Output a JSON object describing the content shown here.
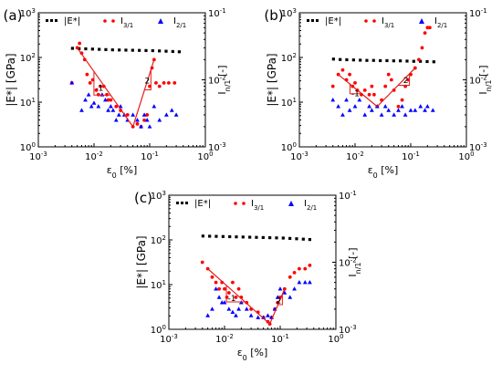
{
  "chart_data": [
    {
      "panel_label": "(a)",
      "type": "scatter",
      "xlabel": "ε0 [%]",
      "xscale": "log",
      "xlim": [
        0.001,
        1
      ],
      "xticks": [
        "10-3",
        "10-2",
        "10-1",
        "100"
      ],
      "ylabel_left": "|E*| [GPa]",
      "yscale_left": "log",
      "ylim_left": [
        1,
        1000
      ],
      "yticks_left": [
        "100",
        "101",
        "102",
        "103"
      ],
      "ylabel_right": "In/1 [-]",
      "yscale_right": "log",
      "ylim_right": [
        0.001,
        0.1
      ],
      "yticks_right": [
        "10-3",
        "10-2",
        "10-1"
      ],
      "legend": [
        "|E*|",
        "I3/1",
        "I2/1"
      ],
      "legend_position": "top",
      "slope_annotations": [
        "-1",
        "2"
      ],
      "series": [
        {
          "name": "|E*|",
          "axis": "left",
          "marker": "square",
          "color": "#000000",
          "x": [
            0.0041,
            0.0054,
            0.0071,
            0.0094,
            0.0124,
            0.0163,
            0.0215,
            0.0284,
            0.0374,
            0.0494,
            0.0651,
            0.0859,
            0.1133,
            0.1494,
            0.1971,
            0.26,
            0.34
          ],
          "y": [
            160,
            158,
            156,
            154,
            152,
            150,
            148,
            147,
            146,
            145,
            144,
            143,
            142,
            140,
            138,
            136,
            134
          ]
        },
        {
          "name": "I3/1",
          "axis": "right",
          "marker": "circle",
          "color": "#ff0000",
          "x": [
            0.004,
            0.005,
            0.0055,
            0.006,
            0.0068,
            0.0075,
            0.0085,
            0.0095,
            0.011,
            0.012,
            0.013,
            0.015,
            0.017,
            0.018,
            0.02,
            0.025,
            0.03,
            0.04,
            0.05,
            0.06,
            0.07,
            0.08,
            0.09,
            0.1,
            0.11,
            0.12,
            0.13,
            0.15,
            0.18,
            0.22,
            0.28
          ],
          "y": [
            0.009,
            0.03,
            0.035,
            0.025,
            0.02,
            0.012,
            0.009,
            0.01,
            0.007,
            0.006,
            0.008,
            0.008,
            0.006,
            0.005,
            0.005,
            0.004,
            0.0035,
            0.003,
            0.002,
            0.0022,
            0.002,
            0.0025,
            0.003,
            0.008,
            0.015,
            0.02,
            0.009,
            0.008,
            0.009,
            0.009,
            0.009
          ]
        },
        {
          "name": "I2/1",
          "axis": "right",
          "marker": "triangle",
          "color": "#0000ff",
          "x": [
            0.004,
            0.006,
            0.007,
            0.008,
            0.009,
            0.01,
            0.012,
            0.014,
            0.016,
            0.018,
            0.02,
            0.022,
            0.025,
            0.028,
            0.03,
            0.035,
            0.04,
            0.05,
            0.06,
            0.07,
            0.08,
            0.09,
            0.1,
            0.12,
            0.15,
            0.2,
            0.25,
            0.3
          ],
          "y": [
            0.009,
            0.0035,
            0.005,
            0.006,
            0.004,
            0.0045,
            0.004,
            0.006,
            0.005,
            0.0035,
            0.004,
            0.0035,
            0.0025,
            0.003,
            0.004,
            0.003,
            0.0025,
            0.003,
            0.0025,
            0.002,
            0.003,
            0.0025,
            0.002,
            0.004,
            0.0025,
            0.003,
            0.0035,
            0.003
          ]
        }
      ]
    },
    {
      "panel_label": "(b)",
      "type": "scatter",
      "xlabel": "ε0 [%]",
      "xscale": "log",
      "xlim": [
        0.001,
        1
      ],
      "xticks": [
        "10-3",
        "10-2",
        "10-1",
        "100"
      ],
      "ylabel_left": "|E*| [GPa]",
      "yscale_left": "log",
      "ylim_left": [
        1,
        1000
      ],
      "yticks_left": [
        "100",
        "101",
        "102",
        "103"
      ],
      "ylabel_right": "In/1 [-]",
      "yscale_right": "log",
      "ylim_right": [
        0.001,
        0.1
      ],
      "yticks_right": [
        "10-3",
        "10-2",
        "10-1"
      ],
      "legend": [
        "|E*|",
        "I3/1",
        "I2/1"
      ],
      "legend_position": "top",
      "slope_annotations": [
        "-1",
        "2"
      ],
      "series": [
        {
          "name": "|E*|",
          "axis": "left",
          "marker": "square",
          "color": "#000000",
          "x": [
            0.0041,
            0.0054,
            0.0071,
            0.0094,
            0.0124,
            0.0163,
            0.0215,
            0.0284,
            0.0374,
            0.0494,
            0.0651,
            0.0859,
            0.1133,
            0.1494,
            0.1971,
            0.26
          ],
          "y": [
            92,
            90,
            89,
            88,
            87,
            86,
            86,
            85,
            85,
            84,
            84,
            83,
            82,
            82,
            81,
            80
          ]
        },
        {
          "name": "I3/1",
          "axis": "right",
          "marker": "circle",
          "color": "#ff0000",
          "x": [
            0.004,
            0.005,
            0.006,
            0.007,
            0.008,
            0.009,
            0.01,
            0.011,
            0.013,
            0.015,
            0.018,
            0.02,
            0.022,
            0.025,
            0.03,
            0.035,
            0.04,
            0.045,
            0.05,
            0.06,
            0.07,
            0.08,
            0.09,
            0.1,
            0.12,
            0.14,
            0.16,
            0.18,
            0.2,
            0.22
          ],
          "y": [
            0.008,
            0.012,
            0.014,
            0.01,
            0.012,
            0.008,
            0.009,
            0.007,
            0.006,
            0.007,
            0.006,
            0.008,
            0.006,
            0.004,
            0.005,
            0.008,
            0.012,
            0.01,
            0.007,
            0.004,
            0.005,
            0.008,
            0.01,
            0.012,
            0.015,
            0.02,
            0.03,
            0.05,
            0.06,
            0.06
          ]
        },
        {
          "name": "I2/1",
          "axis": "right",
          "marker": "triangle",
          "color": "#0000ff",
          "x": [
            0.004,
            0.005,
            0.006,
            0.007,
            0.008,
            0.01,
            0.012,
            0.015,
            0.018,
            0.02,
            0.025,
            0.03,
            0.035,
            0.04,
            0.05,
            0.06,
            0.07,
            0.08,
            0.1,
            0.12,
            0.15,
            0.18,
            0.2,
            0.25
          ],
          "y": [
            0.005,
            0.004,
            0.003,
            0.005,
            0.0035,
            0.004,
            0.005,
            0.003,
            0.004,
            0.0035,
            0.004,
            0.003,
            0.004,
            0.0035,
            0.003,
            0.0035,
            0.004,
            0.003,
            0.0035,
            0.0035,
            0.004,
            0.0035,
            0.004,
            0.0035
          ]
        }
      ]
    },
    {
      "panel_label": "(c)",
      "type": "scatter",
      "xlabel": "ε0 [%]",
      "xscale": "log",
      "xlim": [
        0.001,
        1
      ],
      "xticks": [
        "10-3",
        "10-2",
        "10-1",
        "100"
      ],
      "ylabel_left": "|E*| [GPa]",
      "yscale_left": "log",
      "ylim_left": [
        1,
        1000
      ],
      "yticks_left": [
        "100",
        "101",
        "102",
        "103"
      ],
      "ylabel_right": "In/1 [-]",
      "yscale_right": "log",
      "ylim_right": [
        0.001,
        0.1
      ],
      "yticks_right": [
        "10-3",
        "10-2",
        "10-1"
      ],
      "legend": [
        "|E*|",
        "I3/1",
        "I2/1"
      ],
      "legend_position": "top",
      "slope_annotations": [
        "-1",
        "2"
      ],
      "series": [
        {
          "name": "|E*|",
          "axis": "left",
          "marker": "square",
          "color": "#000000",
          "x": [
            0.0041,
            0.0054,
            0.0071,
            0.0094,
            0.0124,
            0.0163,
            0.0215,
            0.0284,
            0.0374,
            0.0494,
            0.0651,
            0.0859,
            0.1133,
            0.1494,
            0.1971,
            0.26,
            0.34
          ],
          "y": [
            122,
            121,
            120,
            119,
            118,
            117,
            116,
            115,
            114,
            113,
            112,
            111,
            110,
            108,
            106,
            104,
            102
          ]
        },
        {
          "name": "I3/1",
          "axis": "right",
          "marker": "circle",
          "color": "#ff0000",
          "x": [
            0.004,
            0.005,
            0.006,
            0.007,
            0.008,
            0.009,
            0.01,
            0.011,
            0.012,
            0.014,
            0.016,
            0.018,
            0.02,
            0.025,
            0.03,
            0.04,
            0.05,
            0.06,
            0.065,
            0.07,
            0.08,
            0.09,
            0.1,
            0.12,
            0.15,
            0.18,
            0.22,
            0.28,
            0.34
          ],
          "y": [
            0.01,
            0.008,
            0.006,
            0.005,
            0.004,
            0.005,
            0.004,
            0.003,
            0.0035,
            0.005,
            0.003,
            0.004,
            0.003,
            0.0025,
            0.002,
            0.0018,
            0.0015,
            0.0013,
            0.0012,
            0.0015,
            0.002,
            0.0025,
            0.003,
            0.004,
            0.006,
            0.007,
            0.008,
            0.008,
            0.009
          ]
        },
        {
          "name": "I2/1",
          "axis": "right",
          "marker": "triangle",
          "color": "#0000ff",
          "x": [
            0.005,
            0.006,
            0.007,
            0.008,
            0.009,
            0.01,
            0.012,
            0.014,
            0.016,
            0.018,
            0.02,
            0.025,
            0.03,
            0.04,
            0.05,
            0.06,
            0.07,
            0.08,
            0.09,
            0.1,
            0.12,
            0.15,
            0.18,
            0.22,
            0.28,
            0.34
          ],
          "y": [
            0.0016,
            0.002,
            0.004,
            0.003,
            0.0025,
            0.0025,
            0.002,
            0.0018,
            0.0016,
            0.002,
            0.0025,
            0.002,
            0.0016,
            0.0015,
            0.0015,
            0.0016,
            0.0015,
            0.002,
            0.003,
            0.004,
            0.0035,
            0.003,
            0.004,
            0.005,
            0.005,
            0.005
          ]
        }
      ]
    }
  ]
}
